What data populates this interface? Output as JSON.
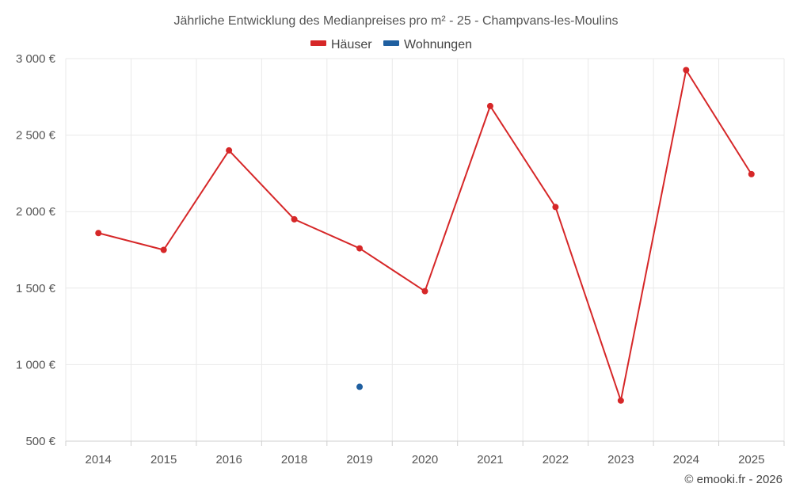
{
  "chart_data": {
    "type": "line",
    "title": "Jährliche Entwicklung des Medianpreises pro m² - 25 - Champvans-les-Moulins",
    "categories": [
      "2014",
      "2015",
      "2016",
      "2018",
      "2019",
      "2020",
      "2021",
      "2022",
      "2023",
      "2024",
      "2025"
    ],
    "series": [
      {
        "name": "Häuser",
        "color": "#d62728",
        "values": [
          1860,
          1750,
          2400,
          1950,
          1760,
          1480,
          2690,
          2030,
          765,
          2925,
          2245
        ]
      },
      {
        "name": "Wohnungen",
        "color": "#1f5fa0",
        "values": [
          null,
          null,
          null,
          null,
          855,
          null,
          null,
          null,
          null,
          null,
          null
        ]
      }
    ],
    "ylim": [
      500,
      3000
    ],
    "yticks": [
      500,
      1000,
      1500,
      2000,
      2500,
      3000
    ],
    "ytick_labels": [
      "500 €",
      "1 000 €",
      "1 500 €",
      "2 000 €",
      "2 500 €",
      "3 000 €"
    ],
    "xlabel": "",
    "ylabel": "",
    "grid": true,
    "legend_position": "top-center"
  },
  "credit": "© emooki.fr - 2026"
}
